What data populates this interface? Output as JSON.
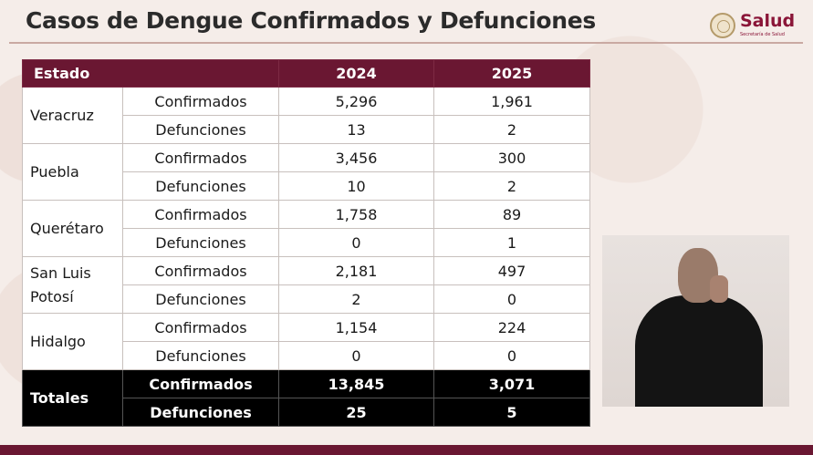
{
  "header": {
    "title": "Casos de Dengue Confirmados y Defunciones",
    "logo_text": "Salud",
    "logo_subtitle": "Secretaría de Salud"
  },
  "table": {
    "headers": [
      "Estado",
      "2024",
      "2025"
    ],
    "rows": [
      {
        "state": "Veracruz",
        "confirmed_label": "Confirmados",
        "confirmed_2024": "5,296",
        "confirmed_2025": "1,961",
        "deaths_label": "Defunciones",
        "deaths_2024": "13",
        "deaths_2025": "2"
      },
      {
        "state": "Puebla",
        "confirmed_label": "Confirmados",
        "confirmed_2024": "3,456",
        "confirmed_2025": "300",
        "deaths_label": "Defunciones",
        "deaths_2024": "10",
        "deaths_2025": "2"
      },
      {
        "state": "Querétaro",
        "confirmed_label": "Confirmados",
        "confirmed_2024": "1,758",
        "confirmed_2025": "89",
        "deaths_label": "Defunciones",
        "deaths_2024": "0",
        "deaths_2025": "1"
      },
      {
        "state": "San Luis Potosí",
        "confirmed_label": "Confirmados",
        "confirmed_2024": "2,181",
        "confirmed_2025": "497",
        "deaths_label": "Defunciones",
        "deaths_2024": "2",
        "deaths_2025": "0"
      },
      {
        "state": "Hidalgo",
        "confirmed_label": "Confirmados",
        "confirmed_2024": "1,154",
        "confirmed_2025": "224",
        "deaths_label": "Defunciones",
        "deaths_2024": "0",
        "deaths_2025": "0"
      }
    ],
    "totals": {
      "label": "Totales",
      "confirmed_label": "Confirmados",
      "confirmed_2024": "13,845",
      "confirmed_2025": "3,071",
      "deaths_label": "Defunciones",
      "deaths_2024": "25",
      "deaths_2025": "5"
    }
  },
  "colors": {
    "header_bg": "#6a1732",
    "totals_bg": "#000000",
    "accent": "#8a1538"
  }
}
